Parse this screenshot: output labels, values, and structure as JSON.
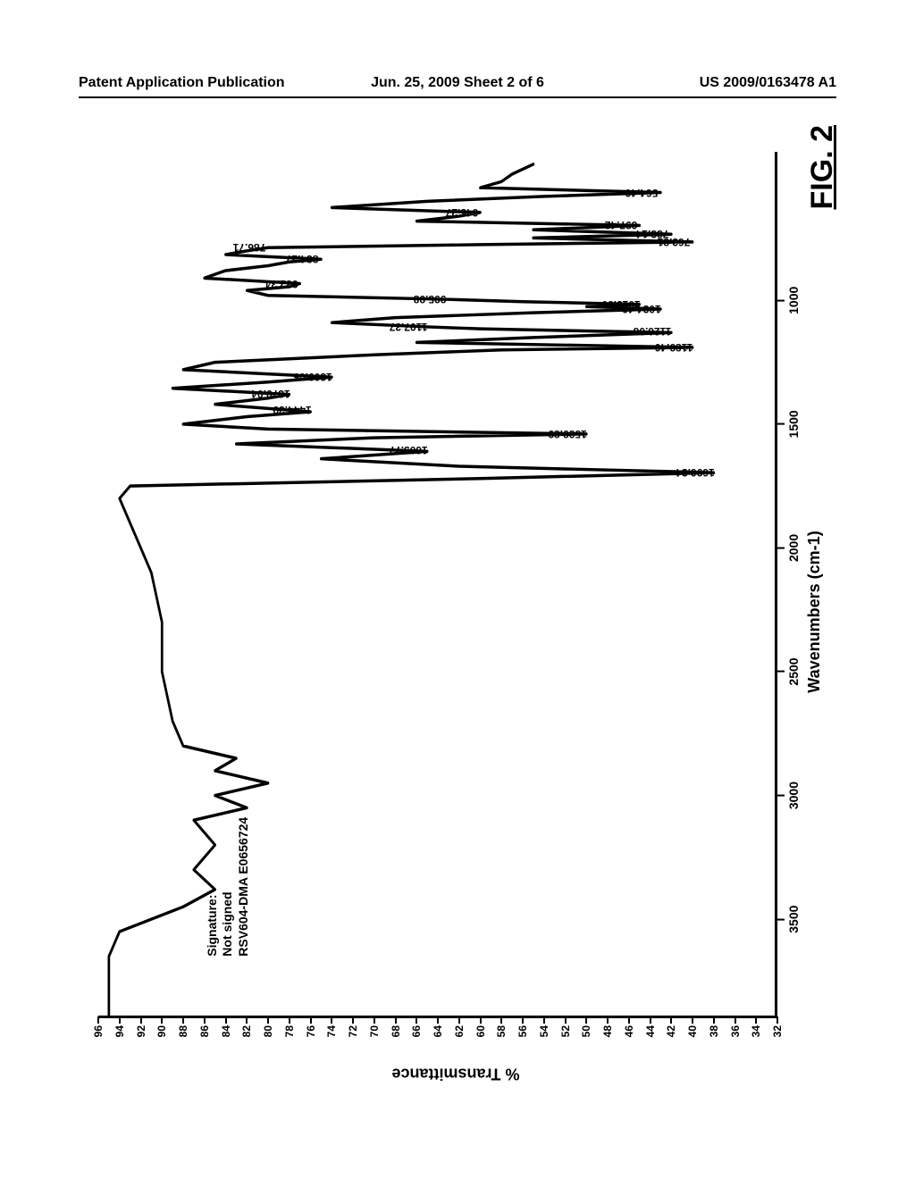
{
  "header": {
    "left": "Patent Application Publication",
    "middle": "Jun. 25, 2009  Sheet 2 of 6",
    "right": "US 2009/0163478 A1"
  },
  "figure": {
    "label": "FIG. 2",
    "signature_lines": [
      "Signature:",
      "Not signed",
      "RSV604-DMA E0656724"
    ],
    "chart": {
      "type": "line",
      "x_label": "Wavenumbers (cm-1)",
      "y_label": "% Transmittance",
      "x_reversed": true,
      "xlim": [
        3900,
        400
      ],
      "ylim": [
        32,
        96
      ],
      "x_ticks": [
        3500,
        3000,
        2500,
        2000,
        1500,
        1000
      ],
      "y_ticks": [
        32,
        34,
        36,
        38,
        40,
        42,
        44,
        46,
        48,
        50,
        52,
        54,
        56,
        58,
        60,
        62,
        64,
        66,
        68,
        70,
        72,
        74,
        76,
        78,
        80,
        82,
        84,
        86,
        88,
        90,
        92,
        94,
        96
      ],
      "line_color": "#000000",
      "line_width": 3,
      "background_color": "#ffffff",
      "font_family": "Arial",
      "tick_fontsize": 12,
      "axis_title_fontsize": 18,
      "peak_labels": [
        {
          "wn": 1696.34,
          "t": 38,
          "text": "1696.34"
        },
        {
          "wn": 1605.77,
          "t": 65,
          "text": "1605.77"
        },
        {
          "wn": 1539.89,
          "t": 50,
          "text": "1539.89"
        },
        {
          "wn": 1444.39,
          "t": 76,
          "text": "1444.39"
        },
        {
          "wn": 1379.04,
          "t": 78,
          "text": "1379.04"
        },
        {
          "wn": 1309.05,
          "t": 74,
          "text": "1309.05"
        },
        {
          "wn": 1189.4,
          "t": 40,
          "text": "1189.40"
        },
        {
          "wn": 1126.06,
          "t": 42,
          "text": "1126.06"
        },
        {
          "wn": 1107.37,
          "t": 65,
          "text": "1107.37"
        },
        {
          "wn": 1034.46,
          "t": 43,
          "text": "1034.46"
        },
        {
          "wn": 1015.9,
          "t": 45,
          "text": "1015.90"
        },
        {
          "wn": 995.98,
          "t": 63,
          "text": "995.98"
        },
        {
          "wn": 932.34,
          "t": 77,
          "text": "932.34"
        },
        {
          "wn": 834.27,
          "t": 75,
          "text": "834.27"
        },
        {
          "wn": 786.71,
          "t": 80,
          "text": "786.71"
        },
        {
          "wn": 763.81,
          "t": 40,
          "text": "763.81"
        },
        {
          "wn": 733.14,
          "t": 42,
          "text": "733.14"
        },
        {
          "wn": 697.42,
          "t": 45,
          "text": "697.42"
        },
        {
          "wn": 645.27,
          "t": 60,
          "text": "645.27"
        },
        {
          "wn": 564.46,
          "t": 43,
          "text": "564.46"
        }
      ],
      "curve": [
        [
          3900,
          95
        ],
        [
          3750,
          95
        ],
        [
          3650,
          95
        ],
        [
          3550,
          94
        ],
        [
          3450,
          88
        ],
        [
          3380,
          85
        ],
        [
          3300,
          87
        ],
        [
          3200,
          85
        ],
        [
          3100,
          87
        ],
        [
          3050,
          82
        ],
        [
          3000,
          85
        ],
        [
          2950,
          80
        ],
        [
          2900,
          85
        ],
        [
          2850,
          83
        ],
        [
          2800,
          88
        ],
        [
          2700,
          89
        ],
        [
          2500,
          90
        ],
        [
          2300,
          90
        ],
        [
          2100,
          91
        ],
        [
          2000,
          92
        ],
        [
          1900,
          93
        ],
        [
          1800,
          94
        ],
        [
          1750,
          93
        ],
        [
          1720,
          60
        ],
        [
          1696,
          38
        ],
        [
          1670,
          62
        ],
        [
          1640,
          75
        ],
        [
          1610,
          65
        ],
        [
          1580,
          83
        ],
        [
          1555,
          70
        ],
        [
          1540,
          50
        ],
        [
          1520,
          80
        ],
        [
          1500,
          88
        ],
        [
          1470,
          82
        ],
        [
          1450,
          76
        ],
        [
          1420,
          85
        ],
        [
          1395,
          80
        ],
        [
          1380,
          78
        ],
        [
          1355,
          89
        ],
        [
          1330,
          80
        ],
        [
          1310,
          74
        ],
        [
          1280,
          88
        ],
        [
          1250,
          85
        ],
        [
          1220,
          70
        ],
        [
          1200,
          58
        ],
        [
          1190,
          40
        ],
        [
          1170,
          66
        ],
        [
          1150,
          55
        ],
        [
          1130,
          42
        ],
        [
          1115,
          60
        ],
        [
          1107,
          65
        ],
        [
          1090,
          74
        ],
        [
          1070,
          68
        ],
        [
          1050,
          55
        ],
        [
          1035,
          43
        ],
        [
          1025,
          50
        ],
        [
          1016,
          45
        ],
        [
          1005,
          56
        ],
        [
          996,
          63
        ],
        [
          980,
          80
        ],
        [
          960,
          82
        ],
        [
          945,
          78
        ],
        [
          932,
          77
        ],
        [
          910,
          86
        ],
        [
          880,
          84
        ],
        [
          860,
          80
        ],
        [
          845,
          78
        ],
        [
          834,
          75
        ],
        [
          815,
          84
        ],
        [
          800,
          82
        ],
        [
          787,
          80
        ],
        [
          775,
          60
        ],
        [
          764,
          40
        ],
        [
          748,
          55
        ],
        [
          733,
          42
        ],
        [
          715,
          55
        ],
        [
          697,
          45
        ],
        [
          680,
          66
        ],
        [
          660,
          62
        ],
        [
          645,
          60
        ],
        [
          625,
          74
        ],
        [
          600,
          65
        ],
        [
          580,
          54
        ],
        [
          564,
          43
        ],
        [
          545,
          60
        ],
        [
          520,
          58
        ],
        [
          490,
          57
        ],
        [
          450,
          55
        ]
      ]
    }
  }
}
